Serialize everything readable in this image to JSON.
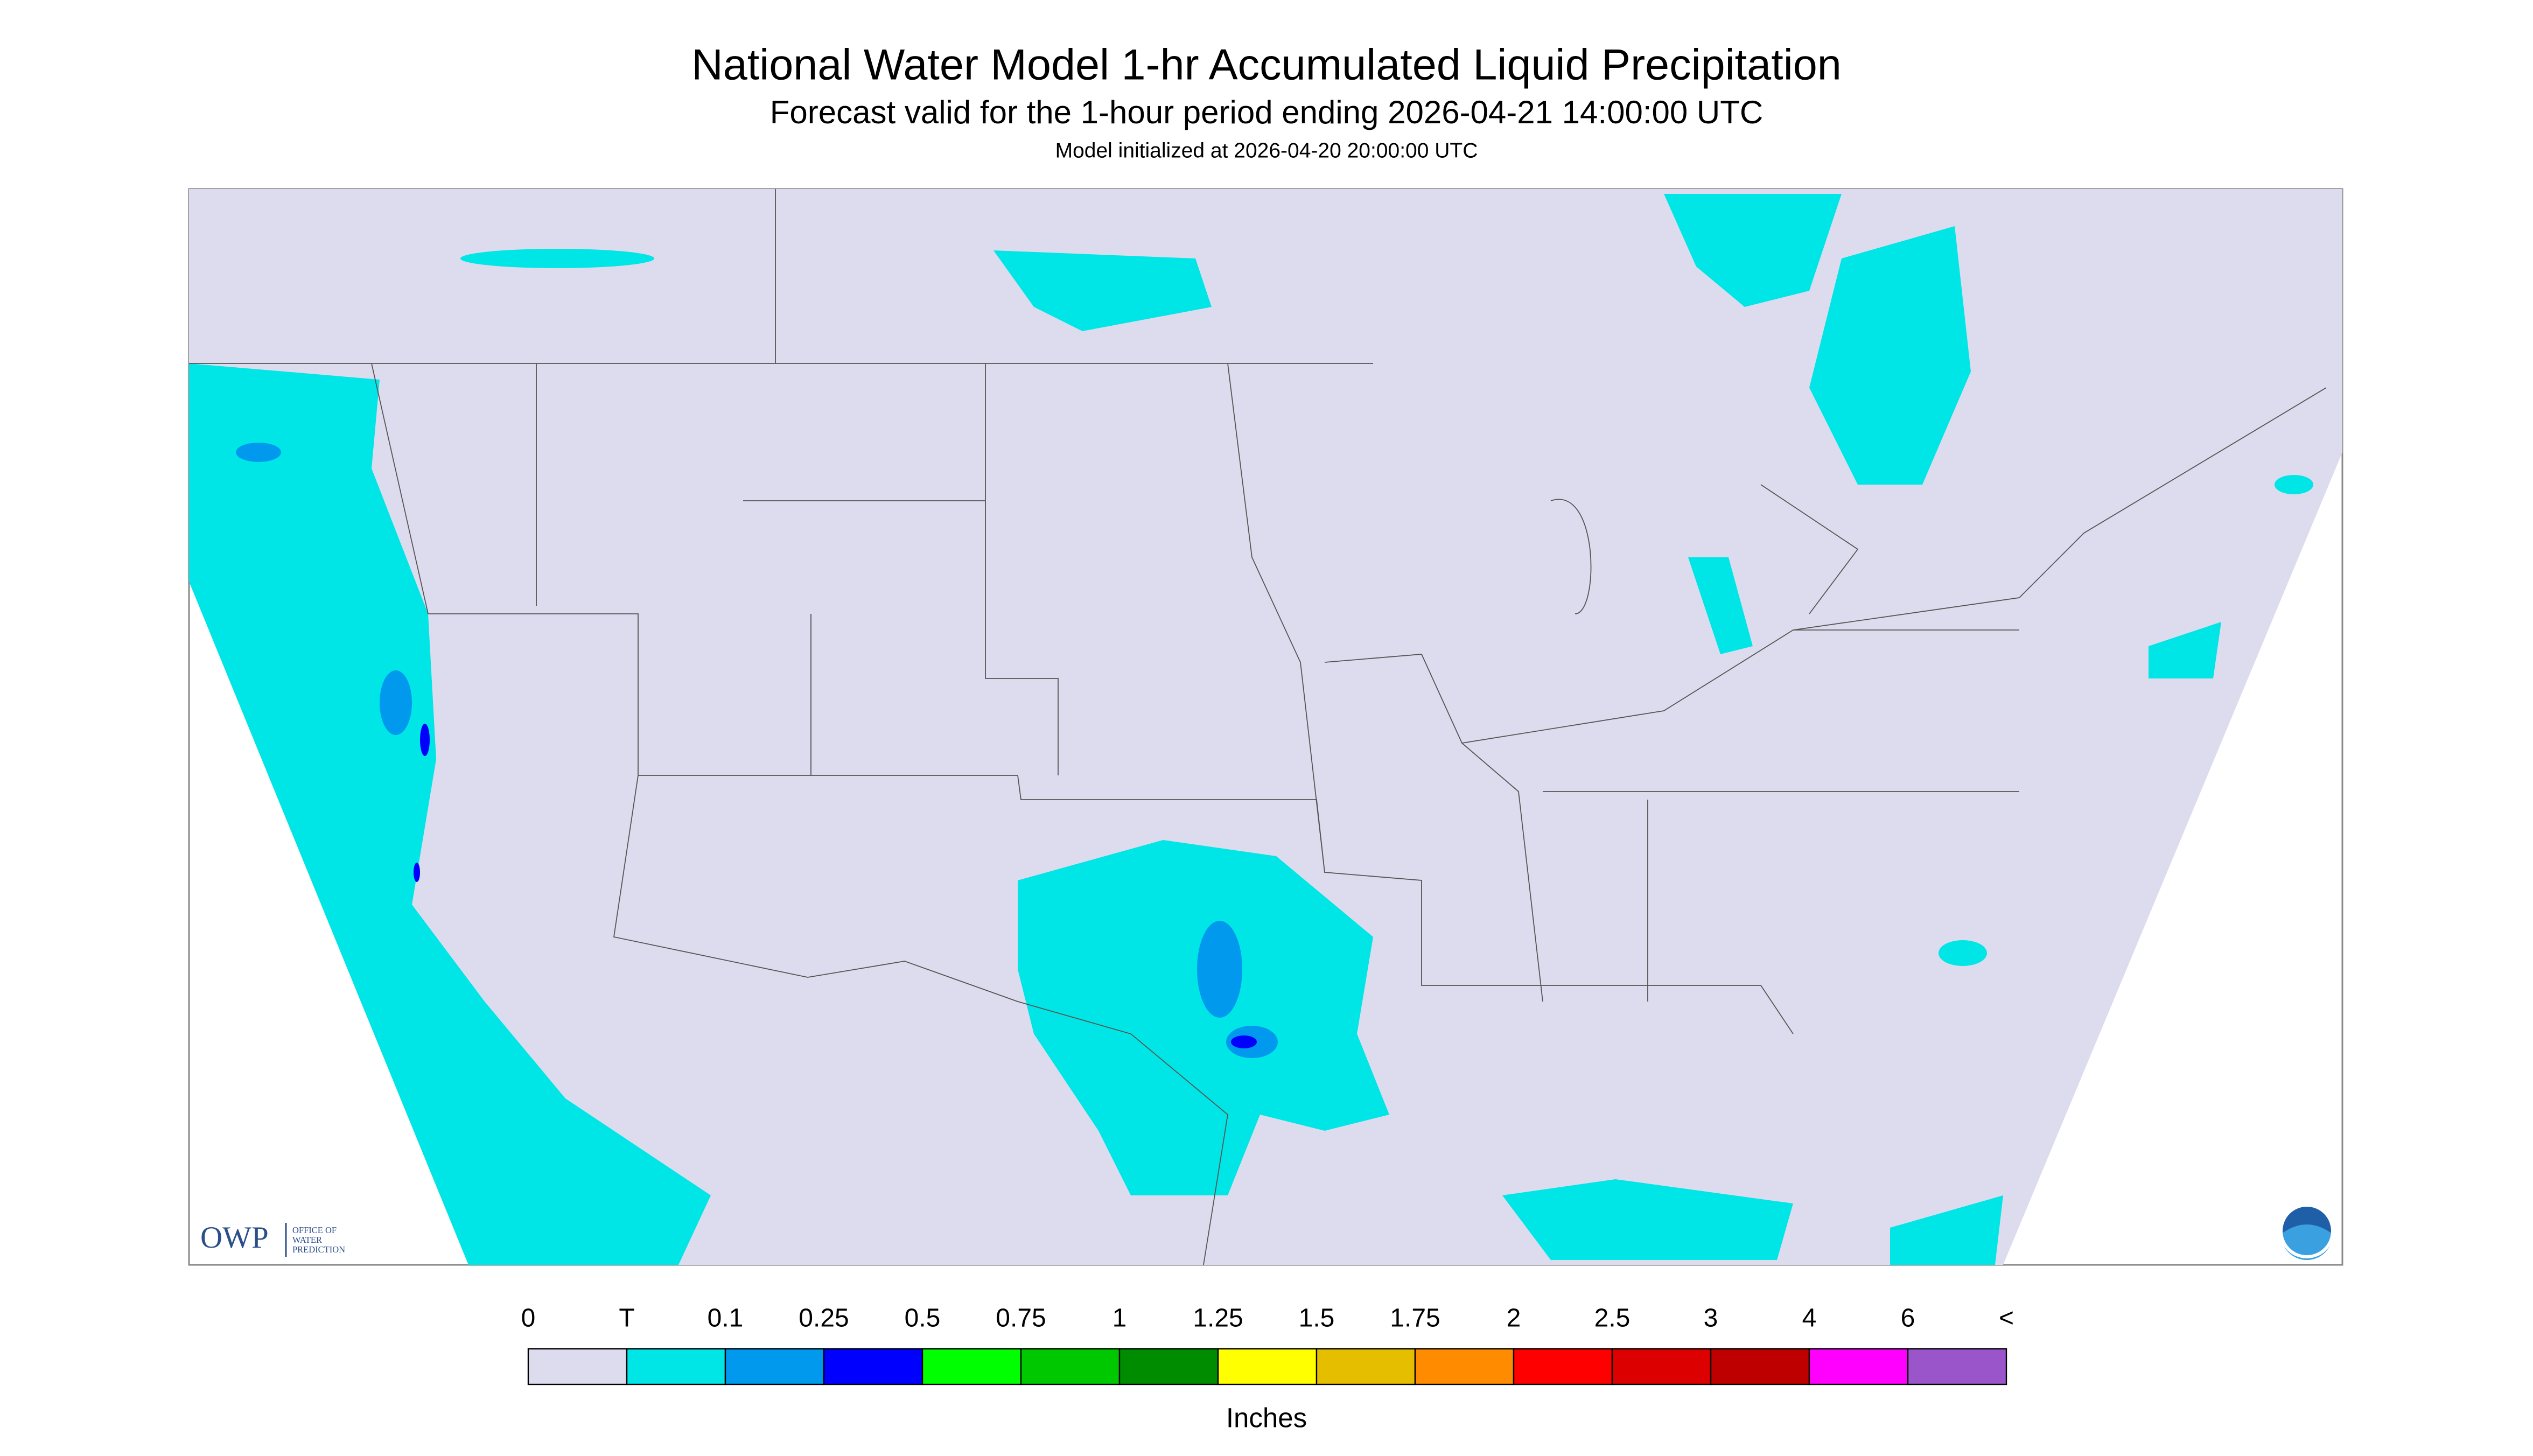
{
  "header": {
    "title": "National Water Model 1-hr Accumulated Liquid Precipitation",
    "subtitle": "Forecast valid for the 1-hour period ending 2026-04-21 14:00:00 UTC",
    "initialized": "Model initialized at 2026-04-20 20:00:00 UTC"
  },
  "legend": {
    "labels": [
      "0",
      "T",
      "0.1",
      "0.25",
      "0.5",
      "0.75",
      "1",
      "1.25",
      "1.5",
      "1.75",
      "2",
      "2.5",
      "3",
      "4",
      "6",
      "<"
    ],
    "colors": [
      "#dcdcee",
      "#00e5e5",
      "#0099ee",
      "#0000ff",
      "#00ff00",
      "#00c800",
      "#008c00",
      "#ffff00",
      "#e6be00",
      "#ff8c00",
      "#ff0000",
      "#dc0000",
      "#be0000",
      "#ff00ff",
      "#9955c9"
    ],
    "unit": "Inches"
  },
  "logo": {
    "abbr": "OWP",
    "lines": [
      "OFFICE OF",
      "WATER",
      "PREDICTION"
    ]
  }
}
